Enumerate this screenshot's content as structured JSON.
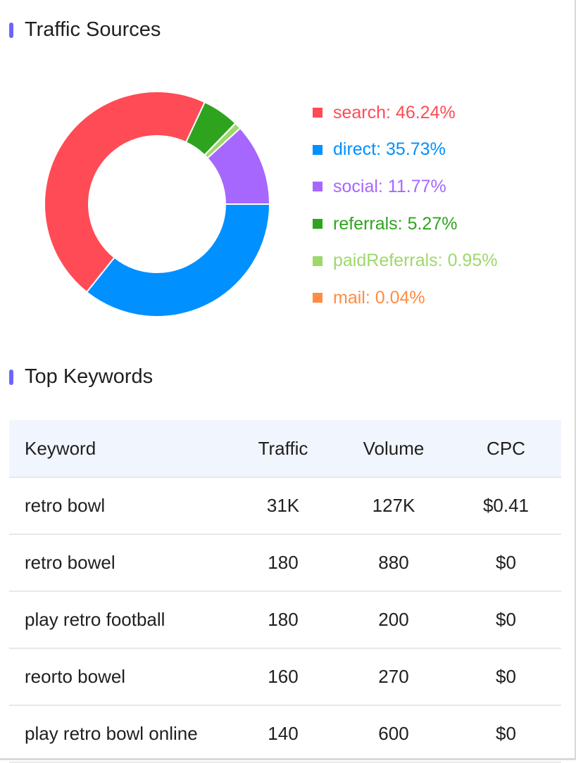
{
  "traffic_sources": {
    "title": "Traffic Sources",
    "segments": [
      {
        "name": "search",
        "percent": 46.24,
        "label": "search: 46.24%",
        "color": "#ff4b55"
      },
      {
        "name": "direct",
        "percent": 35.73,
        "label": "direct: 35.73%",
        "color": "#0090ff"
      },
      {
        "name": "social",
        "percent": 11.77,
        "label": "social: 11.77%",
        "color": "#a667ff"
      },
      {
        "name": "referrals",
        "percent": 5.27,
        "label": "referrals: 5.27%",
        "color": "#2ea41e"
      },
      {
        "name": "paidReferrals",
        "percent": 0.95,
        "label": "paidReferrals: 0.95%",
        "color": "#9ed86b"
      },
      {
        "name": "mail",
        "percent": 0.04,
        "label": "mail: 0.04%",
        "color": "#ff8c42"
      }
    ]
  },
  "top_keywords": {
    "title": "Top Keywords",
    "columns": {
      "keyword": "Keyword",
      "traffic": "Traffic",
      "volume": "Volume",
      "cpc": "CPC"
    },
    "rows": [
      {
        "keyword": "retro bowl",
        "traffic": "31K",
        "volume": "127K",
        "cpc": "$0.41"
      },
      {
        "keyword": "retro bowel",
        "traffic": "180",
        "volume": "880",
        "cpc": "$0"
      },
      {
        "keyword": "play retro football",
        "traffic": "180",
        "volume": "200",
        "cpc": "$0"
      },
      {
        "keyword": "reorto bowel",
        "traffic": "160",
        "volume": "270",
        "cpc": "$0"
      },
      {
        "keyword": "play retro bowl online",
        "traffic": "140",
        "volume": "600",
        "cpc": "$0"
      }
    ]
  },
  "chart_data": {
    "type": "pie",
    "categories": [
      "search",
      "direct",
      "social",
      "referrals",
      "paidReferrals",
      "mail"
    ],
    "values": [
      46.24,
      35.73,
      11.77,
      5.27,
      0.95,
      0.04
    ],
    "title": "Traffic Sources",
    "legend": "right"
  }
}
